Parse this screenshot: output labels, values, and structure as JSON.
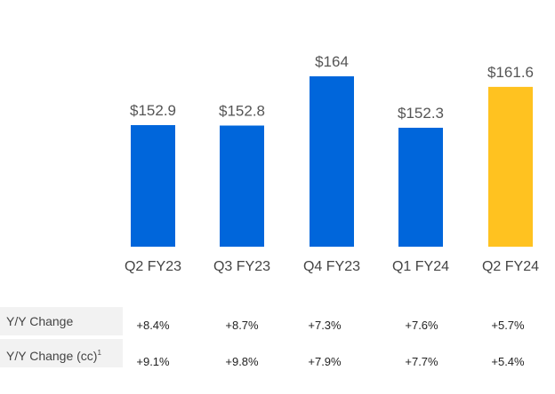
{
  "chart_data": {
    "type": "bar",
    "categories": [
      "Q2 FY23",
      "Q3 FY23",
      "Q4 FY23",
      "Q1 FY24",
      "Q2 FY24"
    ],
    "values": [
      152.9,
      152.8,
      164,
      152.3,
      161.6
    ],
    "value_labels": [
      "$152.9",
      "$152.8",
      "$164",
      "$152.3",
      "$161.6"
    ],
    "bar_colors": [
      "#0066DB",
      "#0066DB",
      "#0066DB",
      "#0066DB",
      "#FFC220"
    ],
    "title": "",
    "xlabel": "",
    "ylabel": "",
    "grid": false
  },
  "table": {
    "rows": [
      {
        "label": "Y/Y Change",
        "footnote": "",
        "values": [
          "+8.4%",
          "+8.7%",
          "+7.3%",
          "+7.6%",
          "+5.7%"
        ]
      },
      {
        "label": "Y/Y Change (cc)",
        "footnote": "1",
        "values": [
          "+9.1%",
          "+9.8%",
          "+7.9%",
          "+7.7%",
          "+5.4%"
        ]
      }
    ]
  }
}
